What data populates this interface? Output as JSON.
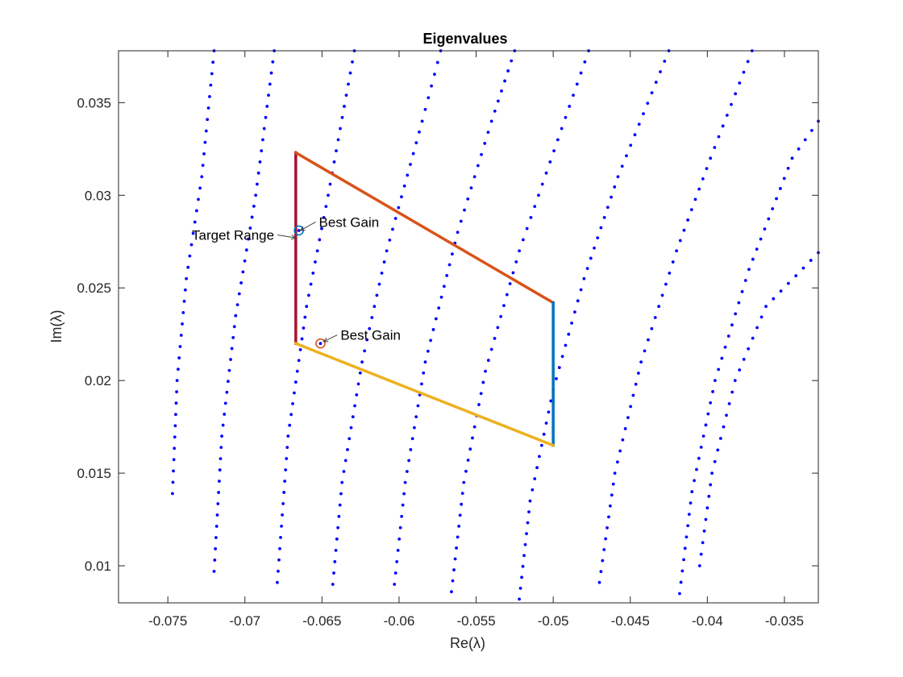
{
  "chart_data": {
    "type": "scatter",
    "title": "Eigenvalues",
    "xlabel": "Re(λ)",
    "ylabel": "Im(λ)",
    "xlim": [
      -0.0782,
      -0.0328
    ],
    "ylim": [
      0.008,
      0.0378
    ],
    "xticks": [
      -0.075,
      -0.07,
      -0.065,
      -0.06,
      -0.055,
      -0.05,
      -0.045,
      -0.04,
      -0.035
    ],
    "yticks": [
      0.01,
      0.015,
      0.02,
      0.025,
      0.03,
      0.035
    ],
    "xtick_labels": [
      "-0.075",
      "-0.07",
      "-0.065",
      "-0.06",
      "-0.055",
      "-0.05",
      "-0.045",
      "-0.04",
      "-0.035"
    ],
    "ytick_labels": [
      "0.01",
      "0.015",
      "0.02",
      "0.025",
      "0.03",
      "0.035"
    ],
    "grid": false,
    "point_color": "#0000ff",
    "eigenvalue_curves": [
      [
        [
          -0.0747,
          0.0139
        ],
        [
          -0.0744,
          0.02
        ],
        [
          -0.0738,
          0.0255
        ],
        [
          -0.0728,
          0.031
        ],
        [
          -0.072,
          0.0378
        ]
      ],
      [
        [
          -0.072,
          0.0097
        ],
        [
          -0.0715,
          0.017
        ],
        [
          -0.0706,
          0.0235
        ],
        [
          -0.0693,
          0.03
        ],
        [
          -0.0681,
          0.0378
        ]
      ],
      [
        [
          -0.0679,
          0.0091
        ],
        [
          -0.0672,
          0.017
        ],
        [
          -0.066,
          0.024
        ],
        [
          -0.0646,
          0.03
        ],
        [
          -0.0629,
          0.0378
        ]
      ],
      [
        [
          -0.0643,
          0.009
        ],
        [
          -0.0637,
          0.0145
        ],
        [
          -0.0624,
          0.021
        ],
        [
          -0.0608,
          0.027
        ],
        [
          -0.0585,
          0.034
        ],
        [
          -0.0573,
          0.0378
        ]
      ],
      [
        [
          -0.0603,
          0.009
        ],
        [
          -0.0596,
          0.0145
        ],
        [
          -0.0583,
          0.021
        ],
        [
          -0.0562,
          0.028
        ],
        [
          -0.054,
          0.034
        ],
        [
          -0.0525,
          0.0378
        ]
      ],
      [
        [
          -0.0566,
          0.0086
        ],
        [
          -0.0558,
          0.0145
        ],
        [
          -0.0544,
          0.0205
        ],
        [
          -0.0522,
          0.027
        ],
        [
          -0.0497,
          0.033
        ],
        [
          -0.0477,
          0.0378
        ]
      ],
      [
        [
          -0.0522,
          0.0082
        ],
        [
          -0.0515,
          0.0135
        ],
        [
          -0.05,
          0.0195
        ],
        [
          -0.048,
          0.0255
        ],
        [
          -0.0458,
          0.031
        ],
        [
          -0.0425,
          0.0378
        ]
      ],
      [
        [
          -0.047,
          0.0091
        ],
        [
          -0.046,
          0.015
        ],
        [
          -0.0443,
          0.021
        ],
        [
          -0.042,
          0.027
        ],
        [
          -0.0398,
          0.032
        ],
        [
          -0.0371,
          0.0378
        ]
      ],
      [
        [
          -0.0418,
          0.0085
        ],
        [
          -0.041,
          0.014
        ],
        [
          -0.0395,
          0.02
        ],
        [
          -0.0373,
          0.026
        ],
        [
          -0.0345,
          0.032
        ],
        [
          -0.0328,
          0.034
        ]
      ],
      [
        [
          -0.0405,
          0.01
        ],
        [
          -0.0397,
          0.015
        ],
        [
          -0.0382,
          0.02
        ],
        [
          -0.0362,
          0.024
        ],
        [
          -0.0328,
          0.0269
        ]
      ]
    ],
    "target_region": {
      "segments": [
        {
          "from": [
            -0.0667,
            0.022
          ],
          "to": [
            -0.0667,
            0.0323
          ],
          "color": "#a2142f"
        },
        {
          "from": [
            -0.0667,
            0.0323
          ],
          "to": [
            -0.05,
            0.0242
          ],
          "color": "#d95319"
        },
        {
          "from": [
            -0.05,
            0.0242
          ],
          "to": [
            -0.05,
            0.0165
          ],
          "color": "#0072bd"
        },
        {
          "from": [
            -0.0667,
            0.022
          ],
          "to": [
            -0.05,
            0.0165
          ],
          "color": "#edb120"
        }
      ]
    },
    "highlighted_points": [
      {
        "x": -0.0665,
        "y": 0.0281,
        "color": "#0072bd"
      },
      {
        "x": -0.0651,
        "y": 0.022,
        "color": "#d95319"
      }
    ],
    "annotations": [
      {
        "text": "Best Gain",
        "arrow_to": [
          -0.0664,
          0.0281
        ],
        "text_at": [
          -0.0652,
          0.0283
        ],
        "anchor": "start"
      },
      {
        "text": "Best Gain",
        "arrow_to": [
          -0.0649,
          0.0221
        ],
        "text_at": [
          -0.0638,
          0.0222
        ],
        "anchor": "start"
      },
      {
        "text": "Target Range",
        "arrow_to": [
          -0.0667,
          0.0277
        ],
        "text_at": [
          -0.0681,
          0.0276
        ],
        "anchor": "end"
      }
    ]
  }
}
